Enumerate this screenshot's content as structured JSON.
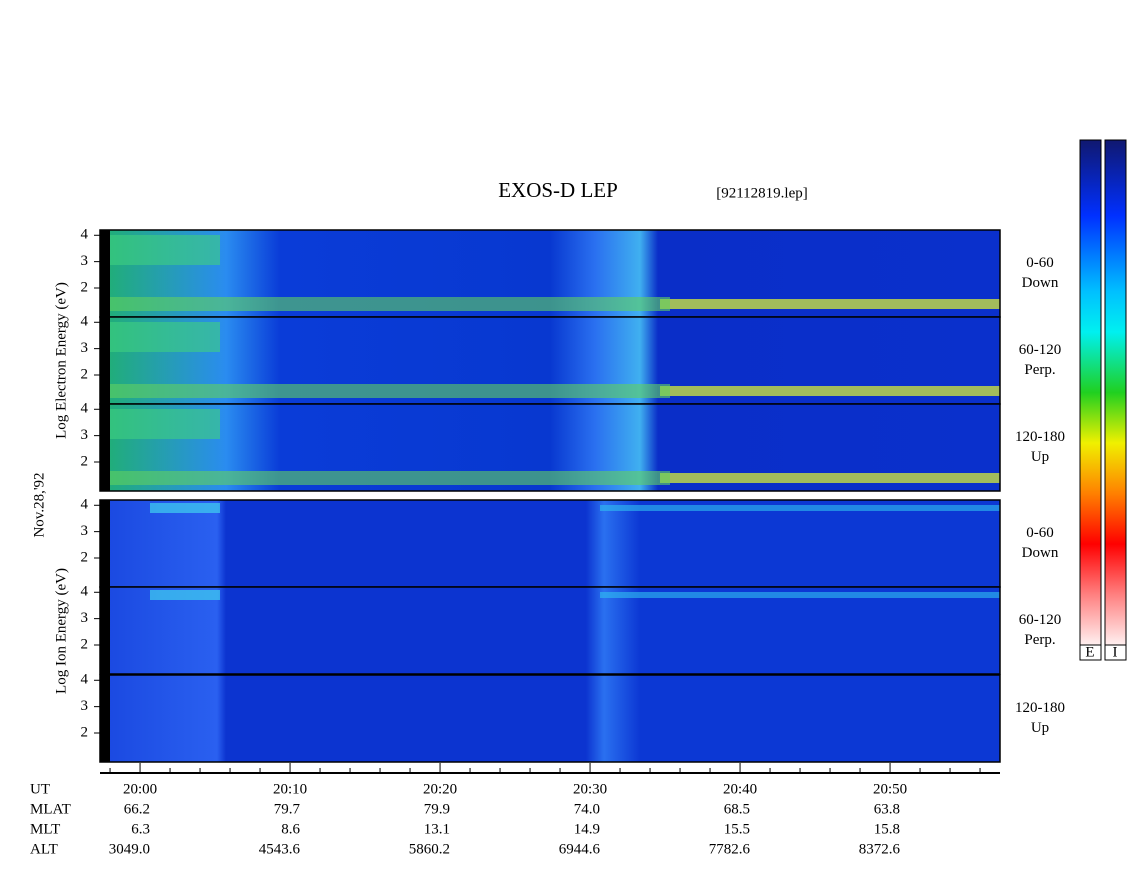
{
  "chart_data": {
    "type": "spectrogram",
    "title": "EXOS-D LEP",
    "subtitle": "[92112819.lep]",
    "date_label": "Nov.28,'92",
    "ylim": [
      0.9,
      4.2
    ],
    "yticks": [
      2,
      3,
      4
    ],
    "groups": [
      {
        "ylabel": "Log  Electron  Energy (eV)",
        "panels": [
          {
            "name": "0-60",
            "direction": "Down"
          },
          {
            "name": "60-120",
            "direction": "Perp."
          },
          {
            "name": "120-180",
            "direction": "Up"
          }
        ]
      },
      {
        "ylabel": "Log  Ion  Energy (eV)",
        "panels": [
          {
            "name": "0-60",
            "direction": "Down"
          },
          {
            "name": "60-120",
            "direction": "Perp."
          },
          {
            "name": "120-180",
            "direction": "Up"
          }
        ]
      }
    ],
    "xlim": [
      1197.33,
      1257.33
    ],
    "xticks": [
      {
        "value": 1200,
        "label": "20:00"
      },
      {
        "value": 1210,
        "label": "20:10"
      },
      {
        "value": 1220,
        "label": "20:20"
      },
      {
        "value": 1230,
        "label": "20:30"
      },
      {
        "value": 1240,
        "label": "20:40"
      },
      {
        "value": 1250,
        "label": "20:50"
      }
    ],
    "minor_xticks": [
      1198,
      1202,
      1204,
      1206,
      1208,
      1212,
      1214,
      1216,
      1218,
      1222,
      1224,
      1226,
      1228,
      1232,
      1234,
      1236,
      1238,
      1242,
      1244,
      1246,
      1248,
      1252,
      1254,
      1256
    ],
    "colorbar_labels": [
      "E",
      "I"
    ],
    "orbit_table": {
      "row_labels": [
        "UT",
        "MLAT",
        "MLT",
        "ALT"
      ],
      "rows": [
        [
          "66.2",
          "79.7",
          "79.9",
          "74.0",
          "68.5",
          "63.8"
        ],
        [
          "6.3",
          "8.6",
          "13.1",
          "14.9",
          "15.5",
          "15.8"
        ],
        [
          "3049.0",
          "4543.6",
          "5860.2",
          "6944.6",
          "7782.6",
          "8372.6"
        ]
      ]
    }
  }
}
